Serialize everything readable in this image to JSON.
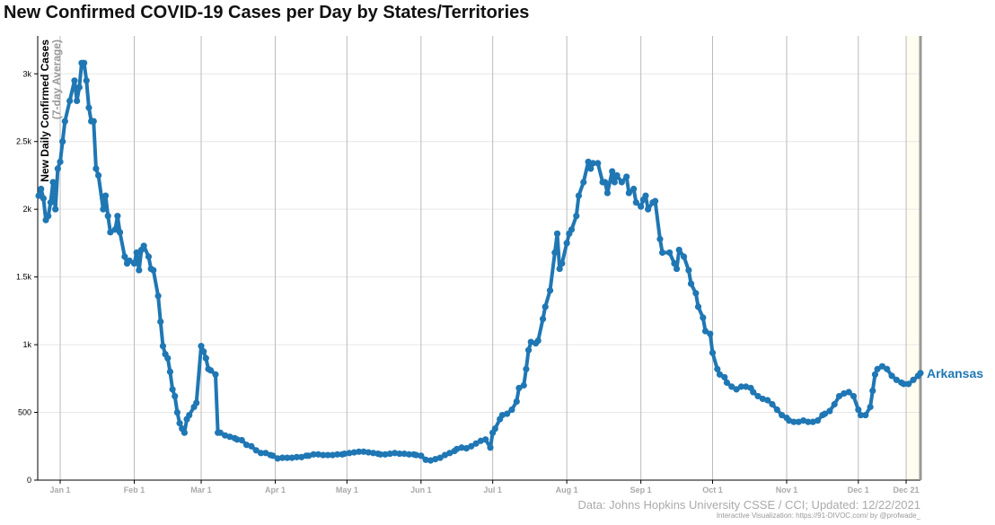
{
  "chart_data": {
    "type": "line",
    "title": "New Confirmed COVID-19 Cases per Day by States/Territories",
    "y_label": "New Daily Confirmed Cases",
    "y_sublabel": "(7-day Average)",
    "source": "Data: Johns Hopkins University CSSE / CCI; Updated: 12/22/2021",
    "credit": "Interactive Visualization: https://91-DIVOC.com/ by @profwade_",
    "xlim": [
      -9.4,
      360
    ],
    "xticks": [
      {
        "value": 0,
        "label": "Jan 1"
      },
      {
        "value": 31,
        "label": "Feb 1"
      },
      {
        "value": 59,
        "label": "Mar 1"
      },
      {
        "value": 90,
        "label": "Apr 1"
      },
      {
        "value": 120,
        "label": "May 1"
      },
      {
        "value": 151,
        "label": "Jun 1"
      },
      {
        "value": 181,
        "label": "Jul 1"
      },
      {
        "value": 212,
        "label": "Aug 1"
      },
      {
        "value": 243,
        "label": "Sep 1"
      },
      {
        "value": 273,
        "label": "Oct 1"
      },
      {
        "value": 304,
        "label": "Nov 1"
      },
      {
        "value": 334,
        "label": "Dec 1"
      },
      {
        "value": 354,
        "label": "Dec 21"
      }
    ],
    "ylim": [
      0,
      3280
    ],
    "yticks": [
      0,
      500,
      {
        "value": 1000,
        "label": "1k"
      },
      {
        "value": 1500,
        "label": "1.5k"
      },
      {
        "value": 2000,
        "label": "2k"
      },
      {
        "value": 2500,
        "label": "2.5k"
      },
      {
        "value": 3000,
        "label": "3k"
      }
    ],
    "grid": true,
    "x": [
      -9,
      -8,
      -7,
      -6,
      -5,
      -4,
      -3,
      -2,
      -1,
      0,
      1,
      2,
      4,
      6,
      7,
      8,
      9,
      10,
      11,
      12,
      13,
      14,
      15,
      16,
      18,
      19,
      20,
      21,
      23,
      24,
      25,
      27,
      28,
      29,
      31,
      32,
      33,
      34,
      35,
      37,
      38,
      39,
      41,
      42,
      43,
      44,
      45,
      46,
      47,
      48,
      49,
      50,
      51,
      52,
      53,
      54,
      56,
      57,
      59,
      60,
      61,
      62,
      63,
      65,
      66,
      67,
      69,
      71,
      73,
      74,
      76,
      78,
      80,
      82,
      84,
      86,
      88,
      89,
      91,
      93,
      95,
      97,
      99,
      101,
      103,
      104,
      106,
      108,
      110,
      112,
      114,
      116,
      118,
      119,
      121,
      123,
      125,
      127,
      129,
      131,
      133,
      134,
      136,
      138,
      140,
      142,
      144,
      146,
      148,
      149,
      151,
      153,
      155,
      157,
      159,
      161,
      163,
      165,
      166,
      168,
      170,
      172,
      174,
      176,
      178,
      180,
      181,
      182,
      184,
      185,
      187,
      189,
      191,
      192,
      194,
      195,
      196,
      197,
      199,
      200,
      202,
      203,
      205,
      207,
      208,
      209,
      210,
      212,
      213,
      214,
      216,
      217,
      219,
      221,
      222,
      223,
      225,
      227,
      228,
      229,
      231,
      232,
      233,
      235,
      237,
      238,
      240,
      241,
      243,
      244,
      245,
      246,
      248,
      249,
      251,
      252,
      255,
      257,
      258,
      259,
      261,
      263,
      264,
      266,
      267,
      269,
      270,
      272,
      273,
      275,
      276,
      278,
      279,
      281,
      283,
      285,
      287,
      289,
      290,
      292,
      294,
      296,
      298,
      300,
      302,
      304,
      305,
      307,
      309,
      311,
      313,
      315,
      317,
      319,
      320,
      322,
      324,
      326,
      328,
      330,
      332,
      334,
      335,
      337,
      339,
      340,
      341,
      342,
      344,
      346,
      348,
      350,
      352,
      353,
      355,
      357,
      359,
      360
    ],
    "series": [
      {
        "name": "Arkansas",
        "color": "#1f77b4",
        "values": [
          2100,
          2150,
          2080,
          1920,
          1950,
          2050,
          2200,
          2000,
          2300,
          2350,
          2500,
          2650,
          2800,
          2950,
          2800,
          2900,
          3080,
          3080,
          2950,
          2750,
          2650,
          2650,
          2300,
          2250,
          2000,
          2100,
          1950,
          1830,
          1850,
          1950,
          1830,
          1650,
          1600,
          1620,
          1600,
          1680,
          1550,
          1700,
          1730,
          1650,
          1560,
          1550,
          1360,
          1170,
          990,
          930,
          900,
          800,
          670,
          620,
          500,
          420,
          380,
          350,
          450,
          480,
          540,
          570,
          990,
          950,
          900,
          820,
          810,
          780,
          350,
          350,
          330,
          320,
          310,
          300,
          295,
          260,
          250,
          220,
          200,
          200,
          185,
          180,
          160,
          165,
          165,
          165,
          170,
          170,
          180,
          180,
          190,
          190,
          185,
          185,
          185,
          190,
          190,
          195,
          200,
          205,
          210,
          210,
          205,
          200,
          195,
          190,
          190,
          195,
          200,
          195,
          195,
          190,
          190,
          185,
          180,
          150,
          145,
          155,
          165,
          185,
          200,
          215,
          230,
          240,
          235,
          250,
          270,
          290,
          300,
          240,
          350,
          380,
          450,
          480,
          490,
          520,
          580,
          680,
          700,
          820,
          960,
          1020,
          1010,
          1030,
          1190,
          1280,
          1400,
          1680,
          1820,
          1560,
          1600,
          1750,
          1820,
          1850,
          1950,
          2100,
          2200,
          2350,
          2300,
          2340,
          2340,
          2200,
          2200,
          2120,
          2280,
          2200,
          2250,
          2200,
          2240,
          2120,
          2150,
          2050,
          2020,
          2070,
          2100,
          2000,
          2050,
          2060,
          1780,
          1680,
          1680,
          1600,
          1560,
          1700,
          1650,
          1550,
          1450,
          1380,
          1280,
          1200,
          1100,
          1080,
          940,
          820,
          780,
          760,
          720,
          690,
          670,
          690,
          690,
          680,
          650,
          620,
          600,
          590,
          560,
          520,
          480,
          460,
          440,
          430,
          430,
          440,
          430,
          430,
          440,
          480,
          490,
          510,
          560,
          620,
          640,
          650,
          620,
          520,
          480,
          480,
          540,
          660,
          780,
          820,
          840,
          820,
          770,
          740,
          720,
          710,
          710,
          740,
          770,
          790
        ]
      }
    ]
  }
}
